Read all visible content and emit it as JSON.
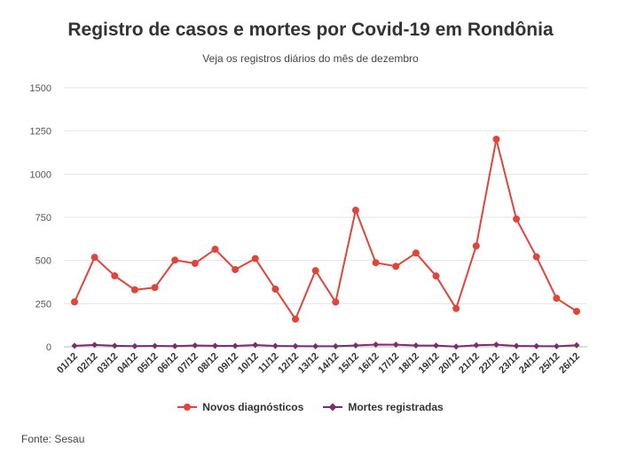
{
  "chart_data": {
    "type": "line",
    "title": "Registro de casos e mortes por Covid-19 em Rondônia",
    "subtitle": "Veja os registros diários do mês de dezembro",
    "x": [
      "01/12",
      "02/12",
      "03/12",
      "04/12",
      "05/12",
      "06/12",
      "07/12",
      "08/12",
      "09/12",
      "10/12",
      "11/12",
      "12/12",
      "13/12",
      "14/12",
      "15/12",
      "16/12",
      "17/12",
      "18/12",
      "19/12",
      "20/12",
      "21/12",
      "22/12",
      "23/12",
      "24/12",
      "25/12",
      "26/12"
    ],
    "series": [
      {
        "name": "Novos diagnósticos",
        "color": "#e0443b",
        "values": [
          260,
          518,
          411,
          330,
          343,
          502,
          483,
          565,
          447,
          511,
          334,
          160,
          441,
          259,
          791,
          487,
          466,
          543,
          410,
          222,
          584,
          1202,
          740,
          521,
          281,
          205
        ]
      },
      {
        "name": "Mortes registradas",
        "color": "#7b2d6e",
        "values": [
          6,
          11,
          6,
          4,
          5,
          4,
          8,
          6,
          5,
          10,
          5,
          4,
          3,
          3,
          8,
          13,
          12,
          8,
          7,
          1,
          9,
          12,
          5,
          4,
          3,
          9
        ]
      }
    ],
    "ylim": [
      0,
      1500
    ],
    "yticks": [
      0,
      250,
      500,
      750,
      1000,
      1250,
      1500
    ],
    "grid": true,
    "legend_position": "bottom-center"
  },
  "source": "Fonte: Sesau"
}
